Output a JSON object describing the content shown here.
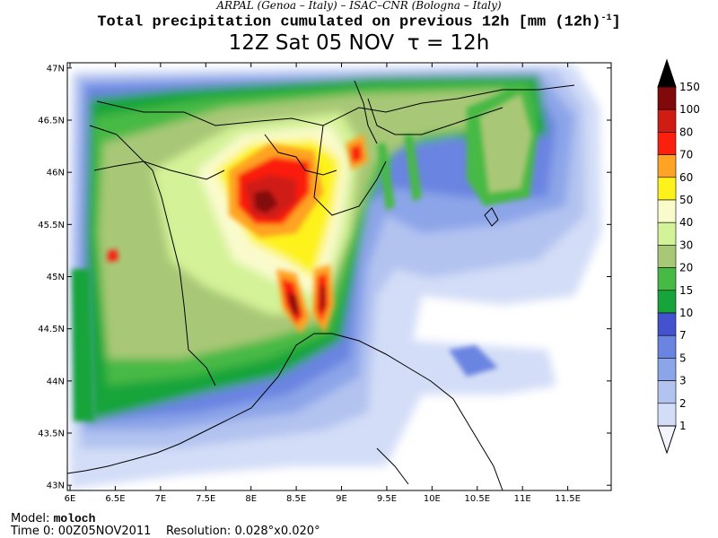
{
  "header": {
    "institutions": "ARPAL (Genoa – Italy)  –  ISAC–CNR (Bologna – Italy)",
    "title": "Total precipitation cumulated on previous 12h [mm (12h)",
    "title_sup": "-1",
    "title_end": "]",
    "run_time": "12Z Sat 05 NOV",
    "tau_label": "τ = 12h"
  },
  "map": {
    "lat_ticks": [
      "47N",
      "46.5N",
      "46N",
      "45.5N",
      "45N",
      "44.5N",
      "44N",
      "43.5N",
      "43N"
    ],
    "lon_ticks": [
      "6E",
      "6.5E",
      "7E",
      "7.5E",
      "8E",
      "8.5E",
      "9E",
      "9.5E",
      "10E",
      "10.5E",
      "11E",
      "11.5E"
    ],
    "lat_range": [
      42.95,
      47.05
    ],
    "lon_range": [
      5.97,
      11.98
    ]
  },
  "colorbar": {
    "labels": [
      "1",
      "2",
      "3",
      "5",
      "7",
      "10",
      "15",
      "20",
      "30",
      "40",
      "50",
      "60",
      "70",
      "80",
      "100",
      "150"
    ],
    "colors": [
      "#f4f4ff",
      "#d3ddf7",
      "#b2c3f0",
      "#8ca5e8",
      "#6a84e1",
      "#4552cf",
      "#16a43b",
      "#47b945",
      "#a9c877",
      "#d4f297",
      "#fafbcd",
      "#fdf21a",
      "#fea323",
      "#fb1f0e",
      "#d01d14",
      "#820909",
      "#000000"
    ]
  },
  "footer": {
    "model_label": "Model:",
    "model_name": "moloch",
    "time0_label": "Time 0:",
    "time0_value": "00Z05NOV2011",
    "resolution_label": "Resolution:",
    "resolution_value": "0.028°x0.020°"
  }
}
